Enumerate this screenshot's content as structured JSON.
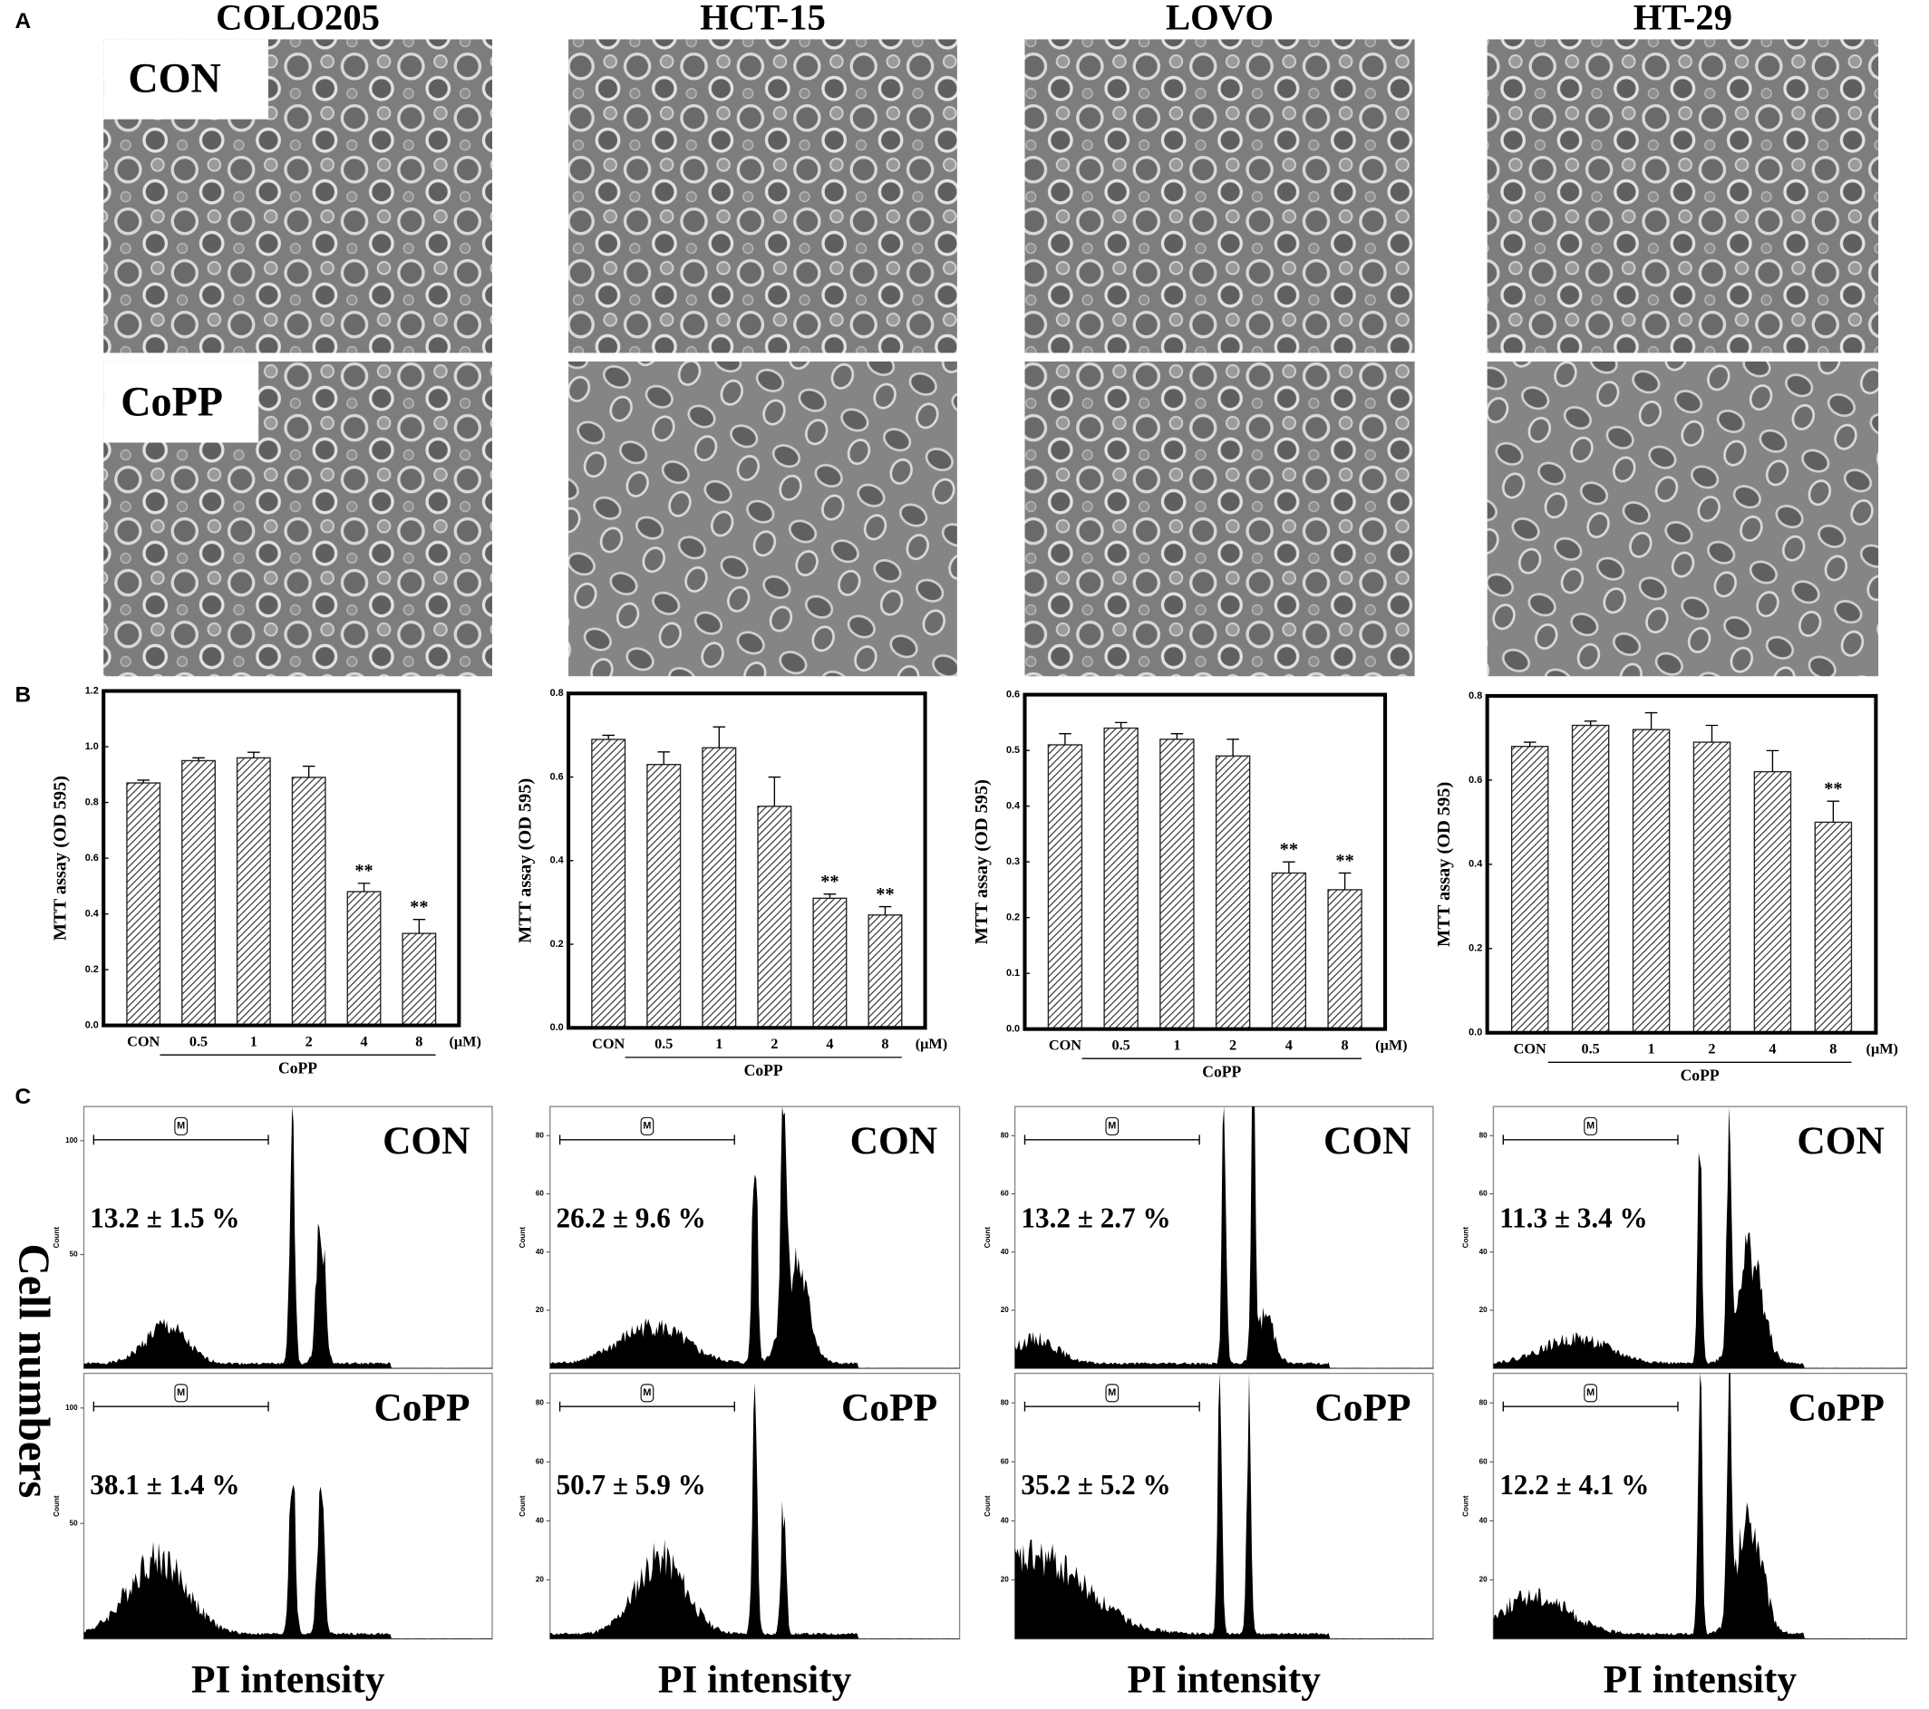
{
  "figure": {
    "panel_labels": [
      "A",
      "B",
      "C"
    ],
    "columns": [
      "COLO205",
      "HCT-15",
      "LOVO",
      "HT-29"
    ],
    "row_labels": [
      "CON",
      "CoPP"
    ],
    "flow": {
      "y_label": "Cell numbers",
      "x_label": "PI intensity",
      "axis_label": "Count",
      "marker": "M",
      "panels": [
        {
          "count_ticks": [
            50,
            100
          ],
          "count_lim": [
            0,
            115
          ],
          "con": "13.2 ± 1.5 %",
          "copp": "38.1 ± 1.4 %"
        },
        {
          "count_ticks": [
            20,
            40,
            60,
            80
          ],
          "count_lim": [
            0,
            90
          ],
          "con": "26.2 ± 9.6 %",
          "copp": "50.7 ± 5.9 %"
        },
        {
          "count_ticks": [
            20,
            40,
            60,
            80
          ],
          "count_lim": [
            0,
            90
          ],
          "con": "13.2 ± 2.7 %",
          "copp": "35.2 ± 5.2 %"
        },
        {
          "count_ticks": [
            20,
            40,
            60,
            80
          ],
          "count_lim": [
            0,
            90
          ],
          "con": "11.3 ± 3.4 %",
          "copp": "12.2 ± 4.1 %"
        }
      ]
    }
  },
  "chart_data": [
    {
      "type": "bar",
      "y_label": "MTT assay (OD 595)",
      "group_label": "CoPP",
      "x_unit": "(μM)",
      "color": "#222222",
      "categories": [
        "CON",
        "0.5",
        "1",
        "2",
        "4",
        "8"
      ],
      "values": [
        0.87,
        0.95,
        0.96,
        0.89,
        0.48,
        0.33
      ],
      "errors": [
        0.01,
        0.01,
        0.02,
        0.04,
        0.03,
        0.05
      ],
      "significance": [
        null,
        null,
        null,
        null,
        "**",
        "**"
      ],
      "ylim": [
        0,
        1.2
      ],
      "yticks": [
        {
          "value": 0,
          "label": "0.0"
        },
        0.2,
        0.4,
        0.6,
        0.8,
        {
          "value": 1,
          "label": "1.0"
        },
        1.2
      ]
    },
    {
      "type": "bar",
      "y_label": "MTT assay (OD 595)",
      "group_label": "CoPP",
      "x_unit": "(μM)",
      "color": "#222222",
      "categories": [
        "CON",
        "0.5",
        "1",
        "2",
        "4",
        "8"
      ],
      "values": [
        0.69,
        0.63,
        0.67,
        0.53,
        0.31,
        0.27
      ],
      "errors": [
        0.01,
        0.03,
        0.05,
        0.07,
        0.01,
        0.02
      ],
      "significance": [
        null,
        null,
        null,
        null,
        "**",
        "**"
      ],
      "ylim": [
        0,
        0.8
      ],
      "yticks": [
        {
          "value": 0,
          "label": "0.0"
        },
        0.2,
        0.4,
        0.6,
        0.8
      ]
    },
    {
      "type": "bar",
      "y_label": "MTT assay (OD 595)",
      "group_label": "CoPP",
      "x_unit": "(μM)",
      "color": "#222222",
      "categories": [
        "CON",
        "0.5",
        "1",
        "2",
        "4",
        "8"
      ],
      "values": [
        0.51,
        0.54,
        0.52,
        0.49,
        0.28,
        0.25
      ],
      "errors": [
        0.02,
        0.01,
        0.01,
        0.03,
        0.02,
        0.03
      ],
      "significance": [
        null,
        null,
        null,
        null,
        "**",
        "**"
      ],
      "ylim": [
        0,
        0.6
      ],
      "yticks": [
        {
          "value": 0,
          "label": "0.0"
        },
        0.1,
        0.2,
        0.3,
        0.4,
        0.5,
        0.6
      ]
    },
    {
      "type": "bar",
      "y_label": "MTT assay (OD 595)",
      "group_label": "CoPP",
      "x_unit": "(μM)",
      "color": "#222222",
      "categories": [
        "CON",
        "0.5",
        "1",
        "2",
        "4",
        "8"
      ],
      "values": [
        0.68,
        0.73,
        0.72,
        0.69,
        0.62,
        0.5
      ],
      "errors": [
        0.01,
        0.01,
        0.04,
        0.04,
        0.05,
        0.05
      ],
      "significance": [
        null,
        null,
        null,
        null,
        null,
        "**"
      ],
      "ylim": [
        0,
        0.8
      ],
      "yticks": [
        {
          "value": 0,
          "label": "0.0"
        },
        0.2,
        0.4,
        0.6,
        0.8
      ]
    }
  ]
}
